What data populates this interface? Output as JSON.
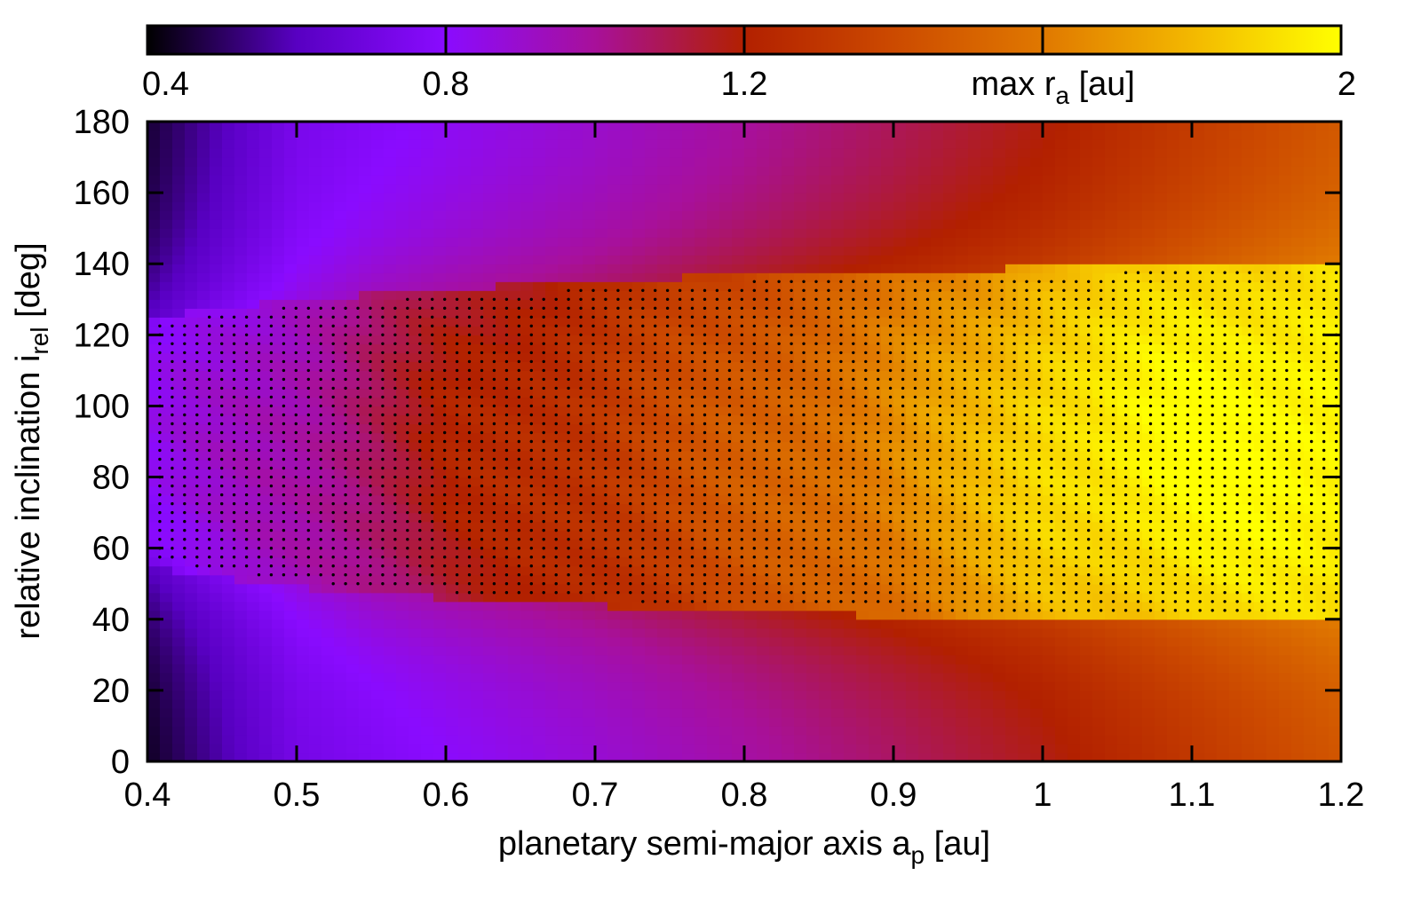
{
  "chart_data": {
    "type": "heatmap",
    "title": "",
    "xlabel": {
      "main": "planetary semi-major axis a",
      "subscript": "p",
      "unit": " [au]"
    },
    "ylabel": {
      "main": "relative inclination i",
      "subscript": "rel",
      "unit": " [deg]"
    },
    "xlim": [
      0.4,
      1.2
    ],
    "ylim": [
      0,
      180
    ],
    "x_ticks": [
      "0.4",
      "0.5",
      "0.6",
      "0.7",
      "0.8",
      "0.9",
      "1",
      "1.1",
      "1.2"
    ],
    "y_ticks": [
      "0",
      "20",
      "40",
      "60",
      "80",
      "100",
      "120",
      "140",
      "160",
      "180"
    ],
    "grid": false,
    "colorbar": {
      "label": {
        "main": "max r",
        "subscript": "a",
        "unit": " [au]"
      },
      "range": [
        0.4,
        2
      ],
      "ticks": [
        "0.4",
        "0.8",
        "1.2",
        "2"
      ],
      "stops": [
        {
          "value": 0.4,
          "color": "#000000"
        },
        {
          "value": 0.6,
          "color": "#5800c2"
        },
        {
          "value": 0.8,
          "color": "#8a0bff"
        },
        {
          "value": 1.0,
          "color": "#a8109a"
        },
        {
          "value": 1.2,
          "color": "#b22000"
        },
        {
          "value": 1.4,
          "color": "#cc4a00"
        },
        {
          "value": 1.6,
          "color": "#e07800"
        },
        {
          "value": 1.8,
          "color": "#f3b800"
        },
        {
          "value": 2.0,
          "color": "#ffff00"
        }
      ]
    },
    "field_model": {
      "outer_profile": [
        {
          "x": 0.4,
          "value": 0.42
        },
        {
          "x": 0.5,
          "value": 0.7
        },
        {
          "x": 0.6,
          "value": 0.78
        },
        {
          "x": 0.7,
          "value": 0.86
        },
        {
          "x": 0.8,
          "value": 0.95
        },
        {
          "x": 0.9,
          "value": 1.04
        },
        {
          "x": 1.0,
          "value": 1.14
        },
        {
          "x": 1.1,
          "value": 1.28
        },
        {
          "x": 1.2,
          "value": 1.42
        }
      ],
      "inner_profile": [
        {
          "x": 0.4,
          "value": 0.82
        },
        {
          "x": 0.5,
          "value": 0.98
        },
        {
          "x": 0.6,
          "value": 1.2
        },
        {
          "x": 0.7,
          "value": 1.32
        },
        {
          "x": 0.8,
          "value": 1.48
        },
        {
          "x": 0.9,
          "value": 1.66
        },
        {
          "x": 0.95,
          "value": 1.78
        },
        {
          "x": 1.0,
          "value": 1.92
        },
        {
          "x": 1.1,
          "value": 2.0
        },
        {
          "x": 1.2,
          "value": 2.0
        }
      ],
      "band_edges": [
        {
          "x": 0.4,
          "low": 55,
          "high": 125
        },
        {
          "x": 0.5,
          "low": 49,
          "high": 130
        },
        {
          "x": 0.6,
          "low": 46,
          "high": 133
        },
        {
          "x": 0.7,
          "low": 44,
          "high": 135
        },
        {
          "x": 0.8,
          "low": 42,
          "high": 137
        },
        {
          "x": 0.9,
          "low": 41,
          "high": 138
        },
        {
          "x": 1.0,
          "low": 40.5,
          "high": 139
        },
        {
          "x": 1.1,
          "low": 40,
          "high": 140
        },
        {
          "x": 1.2,
          "low": 39.5,
          "high": 140
        }
      ]
    },
    "marked_points": {
      "description": "",
      "x_step": 0.0083,
      "y_step": 2.5,
      "region": "within band"
    }
  }
}
